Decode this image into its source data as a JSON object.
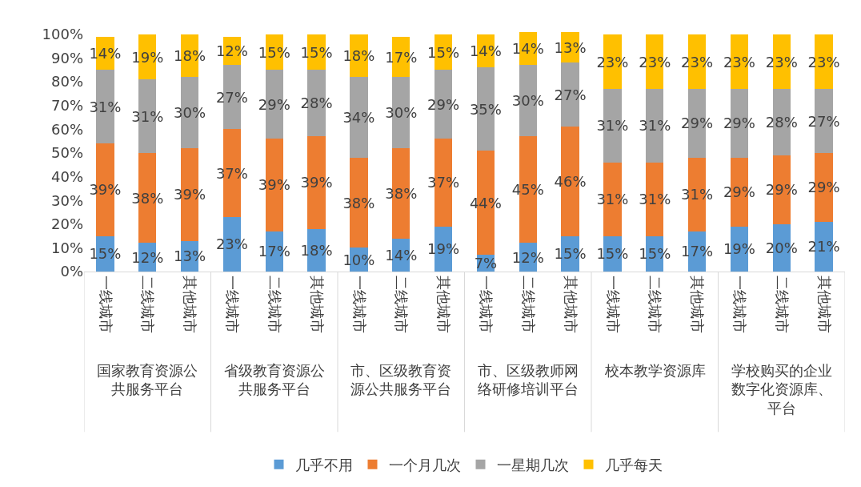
{
  "chart_data": {
    "type": "bar",
    "stacked": true,
    "legend": "bottom",
    "categories": [
      "一线城市",
      "二线城市",
      "其他城市",
      "一线城市",
      "二线城市",
      "其他城市",
      "一线城市",
      "二线城市",
      "其他城市",
      "一线城市",
      "二线城市",
      "其他城市",
      "一线城市",
      "二线城市",
      "其他城市",
      "一线城市",
      "二线城市",
      "其他城市"
    ],
    "annotations": [
      "国家教育资源公共服务平台",
      "省级教育资源公共服务平台",
      "市、区级教育资源公共服务平台",
      "市、区级教师网络研修培训平台",
      "校本教学资源库",
      "学校购买的企业数字化资源库、平台"
    ],
    "ylim": [
      0,
      101
    ],
    "yticks": [
      {
        "value": 0,
        "label": "0%"
      },
      {
        "value": 10,
        "label": "10%"
      },
      {
        "value": 20,
        "label": "20%"
      },
      {
        "value": 30,
        "label": "30%"
      },
      {
        "value": 40,
        "label": "40%"
      },
      {
        "value": 50,
        "label": "50%"
      },
      {
        "value": 60,
        "label": "60%"
      },
      {
        "value": 70,
        "label": "70%"
      },
      {
        "value": 80,
        "label": "80%"
      },
      {
        "value": 90,
        "label": "90%"
      },
      {
        "value": 100,
        "label": "100%"
      }
    ],
    "series": [
      {
        "name": "几乎不用",
        "color": "#5b9bd5",
        "values": [
          15,
          12,
          13,
          23,
          17,
          18,
          10,
          14,
          19,
          7,
          12,
          15,
          15,
          15,
          17,
          19,
          20,
          21
        ],
        "value_labels": [
          "15%",
          "12%",
          "13%",
          "23%",
          "17%",
          "18%",
          "10%",
          "14%",
          "19%",
          "7%",
          "12%",
          "15%",
          "15%",
          "15%",
          "17%",
          "19%",
          "20%",
          "21%"
        ]
      },
      {
        "name": "一个月几次",
        "color": "#ed7d31",
        "values": [
          39,
          38,
          39,
          37,
          39,
          39,
          38,
          38,
          37,
          44,
          45,
          46,
          31,
          31,
          31,
          29,
          29,
          29
        ],
        "value_labels": [
          "39%",
          "38%",
          "39%",
          "37%",
          "39%",
          "39%",
          "38%",
          "38%",
          "37%",
          "44%",
          "45%",
          "46%",
          "31%",
          "31%",
          "31%",
          "29%",
          "29%",
          "29%"
        ]
      },
      {
        "name": "一星期几次",
        "color": "#a5a5a5",
        "values": [
          31,
          31,
          30,
          27,
          29,
          28,
          34,
          30,
          29,
          35,
          30,
          27,
          31,
          31,
          29,
          29,
          28,
          27
        ],
        "value_labels": [
          "31%",
          "31%",
          "30%",
          "27%",
          "29%",
          "28%",
          "34%",
          "30%",
          "29%",
          "35%",
          "30%",
          "27%",
          "31%",
          "31%",
          "29%",
          "29%",
          "28%",
          "27%"
        ]
      },
      {
        "name": "几乎每天",
        "color": "#ffc000",
        "values": [
          14,
          19,
          18,
          12,
          15,
          15,
          18,
          17,
          15,
          14,
          14,
          13,
          23,
          23,
          23,
          23,
          23,
          23
        ],
        "value_labels": [
          "14%",
          "19%",
          "18%",
          "12%",
          "15%",
          "15%",
          "18%",
          "17%",
          "15%",
          "14%",
          "14%",
          "13%",
          "23%",
          "23%",
          "23%",
          "23%",
          "23%",
          "23%"
        ]
      }
    ]
  }
}
